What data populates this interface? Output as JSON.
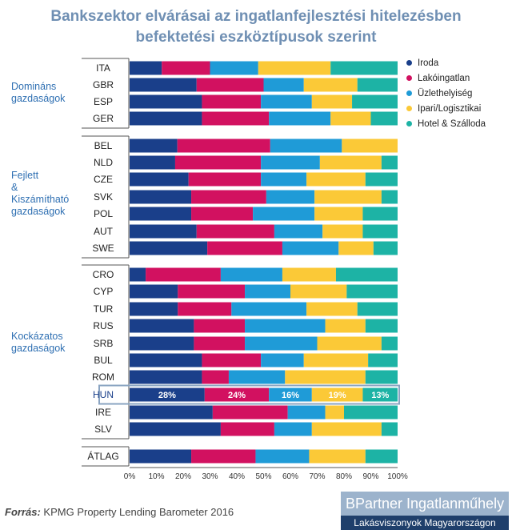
{
  "title_line1": "Bankszektor elvárásai az ingatlanfejlesztési hitelezésben",
  "title_line2": "befektetési eszköztípusok szerint",
  "groups": [
    {
      "lines": [
        "Domináns",
        "gazdaságok"
      ]
    },
    {
      "lines": [
        "Fejlett",
        "&",
        "Kiszámítható",
        "gazdaságok"
      ]
    },
    {
      "lines": [
        "Kockázatos",
        "gazdaságok"
      ]
    }
  ],
  "source_label": "Forrás:",
  "source_text": "KPMG Property Lending Barometer 2016",
  "brand_line1": "BPartner Ingatlanműhely",
  "brand_line2": "Lakásviszonyok Magyarországon",
  "colors": {
    "iroda": "#1a3f8a",
    "lako": "#d21160",
    "uzlet": "#1f9bd7",
    "ipari": "#fbc937",
    "hotel": "#1db3a5"
  },
  "chart_data": {
    "type": "bar",
    "orientation": "horizontal-stacked-100",
    "title": "Bankszektor elvárásai az ingatlanfejlesztési hitelezésben befektetési eszköztípusok szerint",
    "xlim": [
      0,
      100
    ],
    "ticks": [
      "0%",
      "10%",
      "20%",
      "30%",
      "40%",
      "50%",
      "60%",
      "70%",
      "80%",
      "90%",
      "100%"
    ],
    "series": [
      {
        "name": "Iroda",
        "color": "#1a3f8a"
      },
      {
        "name": "Lakóingatlan",
        "color": "#d21160"
      },
      {
        "name": "Üzlethelyiség",
        "color": "#1f9bd7"
      },
      {
        "name": "Ipari/Logisztikai",
        "color": "#fbc937"
      },
      {
        "name": "Hotel & Szálloda",
        "color": "#1db3a5"
      }
    ],
    "categories": [
      "ITA",
      "GBR",
      "ESP",
      "GER",
      "BEL",
      "NLD",
      "CZE",
      "SVK",
      "POL",
      "AUT",
      "SWE",
      "CRO",
      "CYP",
      "TUR",
      "RUS",
      "SRB",
      "BUL",
      "ROM",
      "HUN",
      "IRE",
      "SLV",
      "ÁTLAG"
    ],
    "values": [
      [
        12,
        18,
        18,
        27,
        25
      ],
      [
        25,
        25,
        15,
        20,
        15
      ],
      [
        27,
        22,
        19,
        15,
        17
      ],
      [
        27,
        25,
        23,
        15,
        10
      ],
      [
        18,
        35,
        27,
        21,
        0
      ],
      [
        17,
        32,
        22,
        23,
        6
      ],
      [
        22,
        27,
        17,
        22,
        12
      ],
      [
        23,
        28,
        18,
        25,
        6
      ],
      [
        23,
        23,
        23,
        18,
        13
      ],
      [
        25,
        29,
        18,
        15,
        13
      ],
      [
        29,
        28,
        21,
        13,
        9
      ],
      [
        6,
        28,
        23,
        20,
        23
      ],
      [
        18,
        25,
        17,
        21,
        19
      ],
      [
        18,
        20,
        28,
        19,
        15
      ],
      [
        24,
        19,
        30,
        15,
        12
      ],
      [
        24,
        19,
        27,
        24,
        6
      ],
      [
        27,
        22,
        16,
        24,
        11
      ],
      [
        27,
        10,
        21,
        30,
        12
      ],
      [
        28,
        24,
        16,
        19,
        13
      ],
      [
        31,
        28,
        14,
        7,
        20
      ],
      [
        34,
        20,
        14,
        26,
        6
      ],
      [
        23,
        24,
        20,
        21,
        12
      ]
    ],
    "highlight": {
      "category": "HUN",
      "labels": [
        "28%",
        "24%",
        "16%",
        "19%",
        "13%"
      ]
    }
  }
}
